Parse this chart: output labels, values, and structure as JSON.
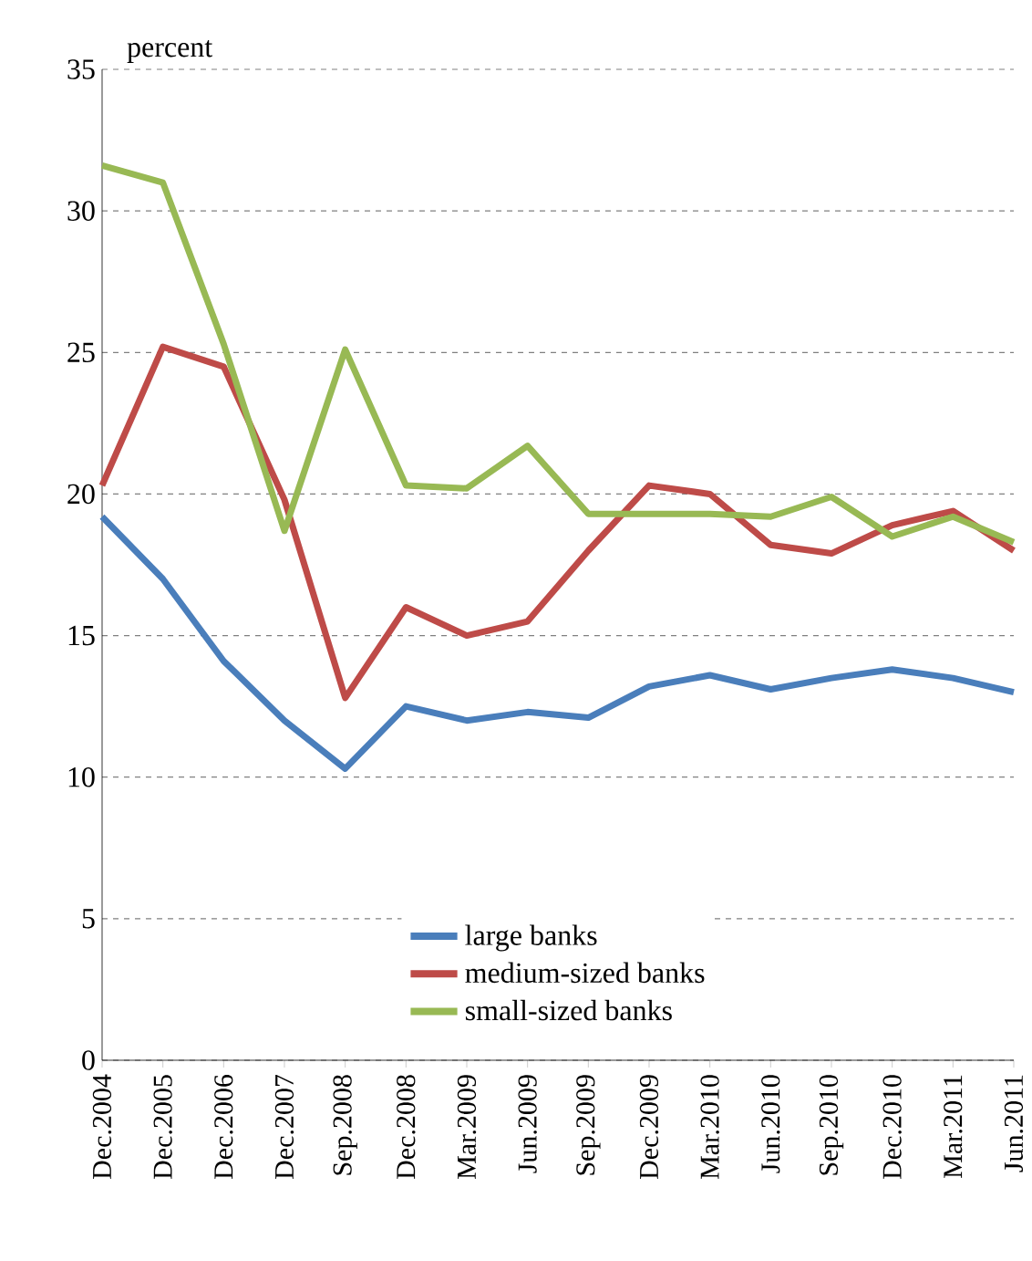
{
  "chart_data": {
    "type": "line",
    "ylabel": "percent",
    "categories": [
      "Dec.2004",
      "Dec.2005",
      "Dec.2006",
      "Dec.2007",
      "Sep.2008",
      "Dec.2008",
      "Mar.2009",
      "Jun.2009",
      "Sep.2009",
      "Dec.2009",
      "Mar.2010",
      "Jun.2010",
      "Sep.2010",
      "Dec.2010",
      "Mar.2011",
      "Jun.2011"
    ],
    "series": [
      {
        "name": "large banks",
        "color": "#4a7ebb",
        "values": [
          19.2,
          17.0,
          14.1,
          12.0,
          10.3,
          12.5,
          12.0,
          12.3,
          12.1,
          13.2,
          13.6,
          13.1,
          13.5,
          13.8,
          13.5,
          13.0
        ]
      },
      {
        "name": "medium-sized banks",
        "color": "#be4b48",
        "values": [
          20.3,
          25.2,
          24.5,
          19.8,
          12.8,
          16.0,
          15.0,
          15.5,
          18.0,
          20.3,
          20.0,
          18.2,
          17.9,
          18.9,
          19.4,
          18.0
        ]
      },
      {
        "name": "small-sized banks",
        "color": "#98b954",
        "values": [
          31.6,
          31.0,
          25.3,
          18.7,
          25.1,
          20.3,
          20.2,
          21.7,
          19.3,
          19.3,
          19.3,
          19.2,
          19.9,
          18.5,
          19.2,
          18.3
        ]
      }
    ],
    "ylim": [
      0,
      35
    ],
    "yticks": [
      0,
      5,
      10,
      15,
      20,
      25,
      30,
      35
    ],
    "grid": "y",
    "legend": "bottom",
    "marker": "none",
    "line_style": "solid"
  }
}
